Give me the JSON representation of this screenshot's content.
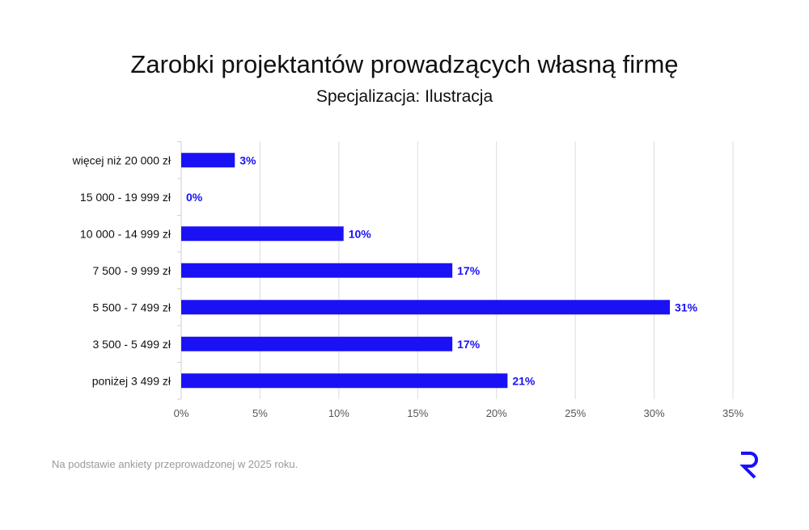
{
  "chart_data": {
    "type": "bar",
    "orientation": "horizontal",
    "title": "Zarobki projektantów prowadzących własną firmę",
    "subtitle": "Specjalizacja: Ilustracja",
    "categories": [
      "więcej niż 20 000 zł",
      "15 000 - 19 999 zł",
      "10 000 - 14 999 zł",
      "7 500 - 9 999 zł",
      "5 500 - 7 499 zł",
      "3 500 - 5 499 zł",
      "poniżej 3 499 zł"
    ],
    "values": [
      3.4,
      0,
      10.3,
      17.2,
      31.0,
      17.2,
      20.7
    ],
    "data_labels": [
      "3%",
      "0%",
      "10%",
      "17%",
      "31%",
      "17%",
      "21%"
    ],
    "xlim": [
      0,
      35
    ],
    "xticks": [
      "0%",
      "5%",
      "10%",
      "15%",
      "20%",
      "25%",
      "30%",
      "35%"
    ],
    "grid": true,
    "bar_color": "#1a12f5",
    "label_color": "#1a12f5"
  },
  "footer": "Na podstawie ankiety przeprowadzonej w 2025 roku.",
  "logo": "R"
}
